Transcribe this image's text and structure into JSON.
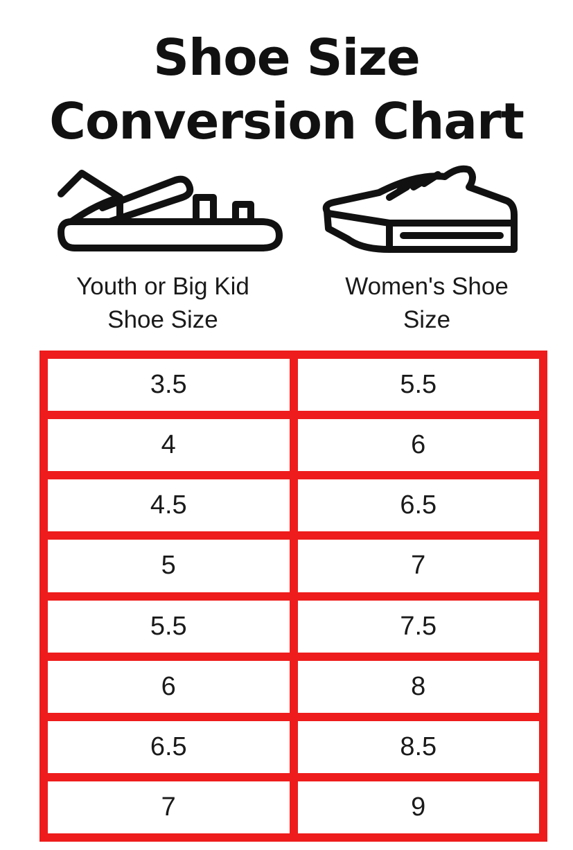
{
  "title": {
    "line1": "Shoe Size",
    "line2": "Conversion Chart"
  },
  "icons": {
    "left": "sandal-icon",
    "right": "sneaker-icon"
  },
  "columns": [
    {
      "label_line1": "Youth or Big Kid",
      "label_line2": "Shoe Size"
    },
    {
      "label_line1": "Women's Shoe",
      "label_line2": "Size"
    }
  ],
  "colors": {
    "border": "#ee1c1c",
    "text": "#111111"
  },
  "rows": [
    [
      "3.5",
      "5.5"
    ],
    [
      "4",
      "6"
    ],
    [
      "4.5",
      "6.5"
    ],
    [
      "5",
      "7"
    ],
    [
      "5.5",
      "7.5"
    ],
    [
      "6",
      "8"
    ],
    [
      "6.5",
      "8.5"
    ],
    [
      "7",
      "9"
    ]
  ]
}
